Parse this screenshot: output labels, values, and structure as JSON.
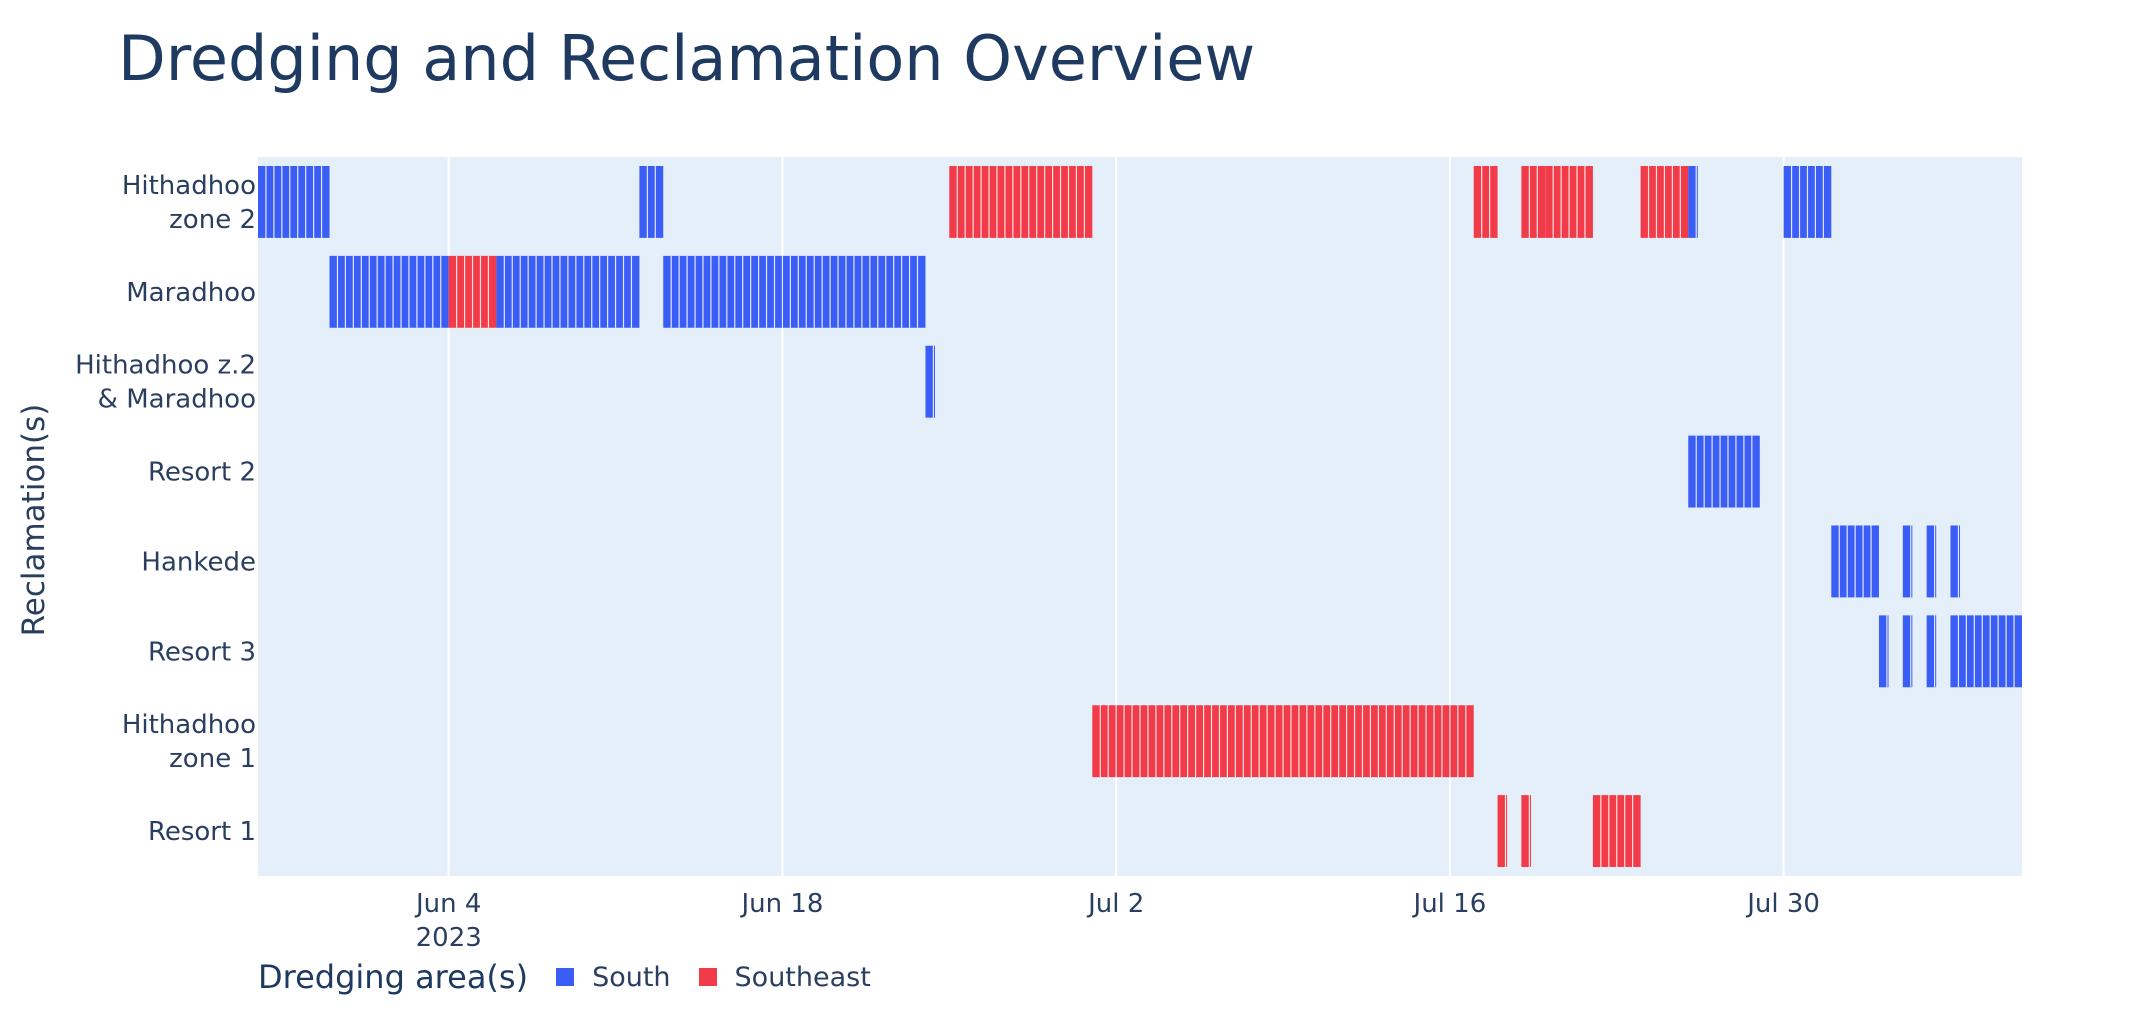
{
  "chart_data": {
    "type": "gantt",
    "title": "Dredging and Reclamation Overview",
    "ylabel": "Reclamation(s)",
    "legend_title": "Dredging area(s)",
    "legend_position": "bottom-left",
    "grid": true,
    "x_range": [
      "2023-05-27",
      "2023-08-09"
    ],
    "x_ticks": [
      {
        "date": "2023-06-04",
        "label": "Jun 4",
        "sublabel": "2023"
      },
      {
        "date": "2023-06-18",
        "label": "Jun 18",
        "sublabel": ""
      },
      {
        "date": "2023-07-02",
        "label": "Jul 2",
        "sublabel": ""
      },
      {
        "date": "2023-07-16",
        "label": "Jul 16",
        "sublabel": ""
      },
      {
        "date": "2023-07-30",
        "label": "Jul 30",
        "sublabel": ""
      }
    ],
    "categories": [
      {
        "id": "hz2",
        "lines": [
          "Hithadhoo",
          "zone 2"
        ]
      },
      {
        "id": "mar",
        "lines": [
          "Maradhoo"
        ]
      },
      {
        "id": "hz2m",
        "lines": [
          "Hithadhoo z.2",
          "& Maradhoo"
        ]
      },
      {
        "id": "r2",
        "lines": [
          "Resort 2"
        ]
      },
      {
        "id": "han",
        "lines": [
          "Hankede"
        ]
      },
      {
        "id": "r3",
        "lines": [
          "Resort 3"
        ]
      },
      {
        "id": "hz1",
        "lines": [
          "Hithadhoo",
          "zone 1"
        ]
      },
      {
        "id": "r1",
        "lines": [
          "Resort 1"
        ]
      }
    ],
    "series": [
      {
        "name": "South",
        "color": "#3a5ef5"
      },
      {
        "name": "Southeast",
        "color": "#f23b48"
      }
    ],
    "tasks": [
      {
        "row": 0,
        "series": 0,
        "start": "2023-05-27",
        "end": "2023-05-30"
      },
      {
        "row": 0,
        "series": 0,
        "start": "2023-06-12",
        "end": "2023-06-13"
      },
      {
        "row": 0,
        "series": 1,
        "start": "2023-06-25",
        "end": "2023-07-01"
      },
      {
        "row": 0,
        "series": 1,
        "start": "2023-07-17",
        "end": "2023-07-18"
      },
      {
        "row": 0,
        "series": 1,
        "start": "2023-07-19",
        "end": "2023-07-20"
      },
      {
        "row": 0,
        "series": 1,
        "start": "2023-07-20",
        "end": "2023-07-22"
      },
      {
        "row": 0,
        "series": 1,
        "start": "2023-07-24",
        "end": "2023-07-26"
      },
      {
        "row": 0,
        "series": 0,
        "start": "2023-07-26",
        "end": "2023-07-26"
      },
      {
        "row": 0,
        "series": 0,
        "start": "2023-07-30",
        "end": "2023-08-01"
      },
      {
        "row": 1,
        "series": 0,
        "start": "2023-05-30",
        "end": "2023-06-04"
      },
      {
        "row": 1,
        "series": 1,
        "start": "2023-06-04",
        "end": "2023-06-06"
      },
      {
        "row": 1,
        "series": 0,
        "start": "2023-06-06",
        "end": "2023-06-12"
      },
      {
        "row": 1,
        "series": 0,
        "start": "2023-06-13",
        "end": "2023-06-24"
      },
      {
        "row": 2,
        "series": 0,
        "start": "2023-06-24",
        "end": "2023-06-24"
      },
      {
        "row": 3,
        "series": 0,
        "start": "2023-07-26",
        "end": "2023-07-29"
      },
      {
        "row": 4,
        "series": 0,
        "start": "2023-08-01",
        "end": "2023-08-03"
      },
      {
        "row": 4,
        "series": 0,
        "start": "2023-08-04",
        "end": "2023-08-04"
      },
      {
        "row": 4,
        "series": 0,
        "start": "2023-08-05",
        "end": "2023-08-05"
      },
      {
        "row": 4,
        "series": 0,
        "start": "2023-08-06",
        "end": "2023-08-06"
      },
      {
        "row": 5,
        "series": 0,
        "start": "2023-08-03",
        "end": "2023-08-03"
      },
      {
        "row": 5,
        "series": 0,
        "start": "2023-08-04",
        "end": "2023-08-04"
      },
      {
        "row": 5,
        "series": 0,
        "start": "2023-08-05",
        "end": "2023-08-05"
      },
      {
        "row": 5,
        "series": 0,
        "start": "2023-08-06",
        "end": "2023-08-09"
      },
      {
        "row": 6,
        "series": 1,
        "start": "2023-07-01",
        "end": "2023-07-17"
      },
      {
        "row": 7,
        "series": 1,
        "start": "2023-07-18",
        "end": "2023-07-18"
      },
      {
        "row": 7,
        "series": 1,
        "start": "2023-07-19",
        "end": "2023-07-19"
      },
      {
        "row": 7,
        "series": 1,
        "start": "2023-07-22",
        "end": "2023-07-24"
      }
    ]
  }
}
